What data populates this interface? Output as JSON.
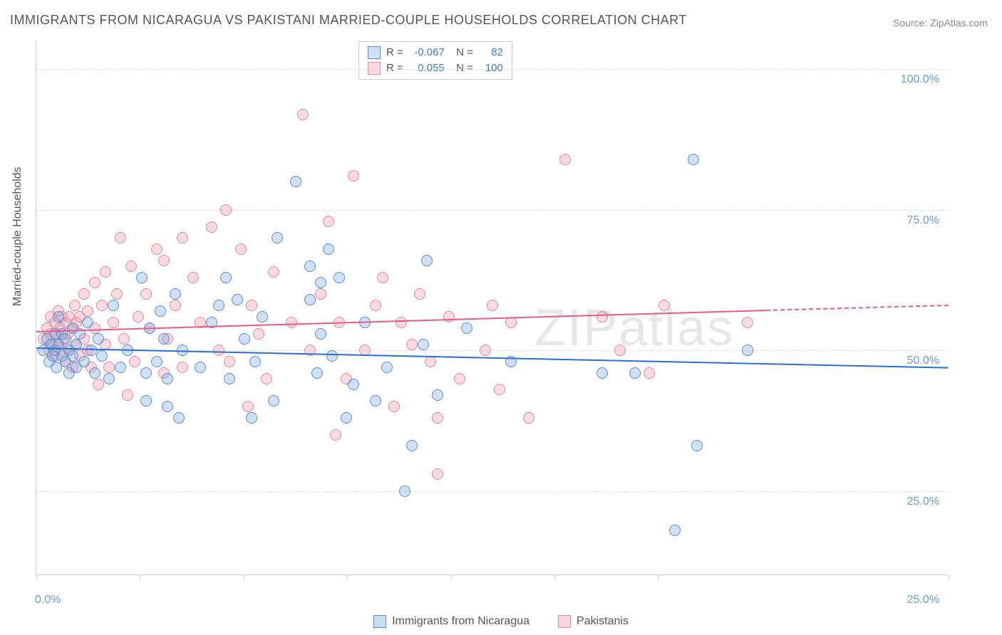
{
  "title": "IMMIGRANTS FROM NICARAGUA VS PAKISTANI MARRIED-COUPLE HOUSEHOLDS CORRELATION CHART",
  "source": "Source: ZipAtlas.com",
  "watermark": "ZIPatlas",
  "ylabel": "Married-couple Households",
  "chart": {
    "type": "scatter",
    "xlim": [
      0,
      25
    ],
    "ylim": [
      10,
      105
    ],
    "xtick_positions": [
      0,
      2.84,
      5.68,
      8.52,
      11.36,
      14.2,
      17.04,
      25
    ],
    "xtick_labels_shown": {
      "0": "0.0%",
      "25": "25.0%"
    },
    "ytick_positions": [
      25,
      50,
      75,
      100
    ],
    "ytick_labels": [
      "25.0%",
      "50.0%",
      "75.0%",
      "100.0%"
    ],
    "grid_color": "#dddddd",
    "axis_color": "#cccccc",
    "background_color": "#ffffff",
    "tick_label_color": "#6b9bd8",
    "axis_label_color": "#555555",
    "title_color": "#555555",
    "title_fontsize": 18,
    "label_fontsize": 16,
    "tick_fontsize": 16,
    "point_radius": 8,
    "series": [
      {
        "name": "Immigrants from Nicaragua",
        "fill_color": "rgba(120,170,225,0.35)",
        "stroke_color": "#5a8fce",
        "trend_color": "#2e6fd0",
        "R": "-0.067",
        "N": "82",
        "trend": {
          "x1": 0,
          "y1": 50.5,
          "x2": 25,
          "y2": 47.0
        },
        "points": [
          [
            0.2,
            50
          ],
          [
            0.3,
            52
          ],
          [
            0.35,
            48
          ],
          [
            0.4,
            51
          ],
          [
            0.45,
            49
          ],
          [
            0.5,
            53
          ],
          [
            0.5,
            50
          ],
          [
            0.55,
            47
          ],
          [
            0.6,
            51
          ],
          [
            0.6,
            56
          ],
          [
            0.7,
            49
          ],
          [
            0.7,
            53
          ],
          [
            0.8,
            48
          ],
          [
            0.8,
            52
          ],
          [
            0.9,
            50
          ],
          [
            0.9,
            46
          ],
          [
            1.0,
            54
          ],
          [
            1.0,
            49
          ],
          [
            1.1,
            51
          ],
          [
            1.1,
            47
          ],
          [
            1.2,
            53
          ],
          [
            1.3,
            48
          ],
          [
            1.4,
            55
          ],
          [
            1.5,
            50
          ],
          [
            1.6,
            46
          ],
          [
            1.7,
            52
          ],
          [
            1.8,
            49
          ],
          [
            2.0,
            45
          ],
          [
            2.1,
            58
          ],
          [
            2.3,
            47
          ],
          [
            2.5,
            50
          ],
          [
            2.9,
            63
          ],
          [
            3.0,
            46
          ],
          [
            3.0,
            41
          ],
          [
            3.1,
            54
          ],
          [
            3.3,
            48
          ],
          [
            3.4,
            57
          ],
          [
            3.5,
            52
          ],
          [
            3.6,
            45
          ],
          [
            3.6,
            40
          ],
          [
            3.8,
            60
          ],
          [
            3.9,
            38
          ],
          [
            4.0,
            50
          ],
          [
            4.5,
            47
          ],
          [
            4.8,
            55
          ],
          [
            5.0,
            58
          ],
          [
            5.2,
            63
          ],
          [
            5.3,
            45
          ],
          [
            5.5,
            59
          ],
          [
            5.7,
            52
          ],
          [
            5.9,
            38
          ],
          [
            6.0,
            48
          ],
          [
            6.2,
            56
          ],
          [
            6.5,
            41
          ],
          [
            6.6,
            70
          ],
          [
            7.1,
            80
          ],
          [
            7.5,
            65
          ],
          [
            7.5,
            59
          ],
          [
            7.7,
            46
          ],
          [
            7.8,
            53
          ],
          [
            7.8,
            62
          ],
          [
            8.0,
            68
          ],
          [
            8.1,
            49
          ],
          [
            8.3,
            63
          ],
          [
            8.5,
            38
          ],
          [
            8.7,
            44
          ],
          [
            9.0,
            55
          ],
          [
            9.3,
            41
          ],
          [
            9.6,
            47
          ],
          [
            10.1,
            25
          ],
          [
            10.3,
            33
          ],
          [
            10.6,
            51
          ],
          [
            10.7,
            66
          ],
          [
            11.0,
            42
          ],
          [
            11.8,
            54
          ],
          [
            13.0,
            48
          ],
          [
            15.5,
            46
          ],
          [
            16.4,
            46
          ],
          [
            17.5,
            18
          ],
          [
            18.0,
            84
          ],
          [
            18.1,
            33
          ],
          [
            19.5,
            50
          ]
        ]
      },
      {
        "name": "Pakistanis",
        "fill_color": "rgba(240,150,170,0.35)",
        "stroke_color": "#e08aa0",
        "trend_color": "#e75a8a",
        "R": "0.055",
        "N": "100",
        "trend": {
          "x1": 0,
          "y1": 53.5,
          "x2": 20,
          "y2": 57.3,
          "x2_dash": 25,
          "y2_dash": 58.2
        },
        "points": [
          [
            0.2,
            52
          ],
          [
            0.3,
            54
          ],
          [
            0.35,
            50
          ],
          [
            0.4,
            53
          ],
          [
            0.4,
            56
          ],
          [
            0.45,
            51
          ],
          [
            0.5,
            55
          ],
          [
            0.5,
            49
          ],
          [
            0.55,
            53
          ],
          [
            0.6,
            57
          ],
          [
            0.6,
            51
          ],
          [
            0.65,
            54
          ],
          [
            0.7,
            50
          ],
          [
            0.7,
            56
          ],
          [
            0.75,
            52
          ],
          [
            0.8,
            55
          ],
          [
            0.8,
            48
          ],
          [
            0.85,
            53
          ],
          [
            0.9,
            56
          ],
          [
            0.9,
            50
          ],
          [
            1.0,
            54
          ],
          [
            1.0,
            47
          ],
          [
            1.05,
            58
          ],
          [
            1.1,
            51
          ],
          [
            1.1,
            55
          ],
          [
            1.2,
            49
          ],
          [
            1.2,
            56
          ],
          [
            1.3,
            52
          ],
          [
            1.3,
            60
          ],
          [
            1.4,
            50
          ],
          [
            1.4,
            57
          ],
          [
            1.5,
            47
          ],
          [
            1.6,
            54
          ],
          [
            1.6,
            62
          ],
          [
            1.7,
            44
          ],
          [
            1.8,
            58
          ],
          [
            1.9,
            51
          ],
          [
            1.9,
            64
          ],
          [
            2.0,
            47
          ],
          [
            2.1,
            55
          ],
          [
            2.2,
            60
          ],
          [
            2.3,
            70
          ],
          [
            2.4,
            52
          ],
          [
            2.5,
            42
          ],
          [
            2.6,
            65
          ],
          [
            2.7,
            48
          ],
          [
            2.8,
            56
          ],
          [
            3.0,
            60
          ],
          [
            3.1,
            54
          ],
          [
            3.3,
            68
          ],
          [
            3.5,
            46
          ],
          [
            3.5,
            66
          ],
          [
            3.6,
            52
          ],
          [
            3.8,
            58
          ],
          [
            4.0,
            70
          ],
          [
            4.0,
            47
          ],
          [
            4.3,
            63
          ],
          [
            4.5,
            55
          ],
          [
            4.8,
            72
          ],
          [
            5.0,
            50
          ],
          [
            5.2,
            75
          ],
          [
            5.3,
            48
          ],
          [
            5.6,
            68
          ],
          [
            5.8,
            40
          ],
          [
            5.9,
            58
          ],
          [
            6.1,
            53
          ],
          [
            6.3,
            45
          ],
          [
            6.5,
            64
          ],
          [
            7.0,
            55
          ],
          [
            7.3,
            92
          ],
          [
            7.5,
            50
          ],
          [
            7.8,
            60
          ],
          [
            8.0,
            73
          ],
          [
            8.2,
            35
          ],
          [
            8.3,
            55
          ],
          [
            8.5,
            45
          ],
          [
            8.7,
            81
          ],
          [
            9.0,
            50
          ],
          [
            9.3,
            58
          ],
          [
            9.5,
            63
          ],
          [
            9.8,
            40
          ],
          [
            10.0,
            55
          ],
          [
            10.3,
            51
          ],
          [
            10.5,
            60
          ],
          [
            10.8,
            48
          ],
          [
            11.0,
            38
          ],
          [
            11.0,
            28
          ],
          [
            11.3,
            56
          ],
          [
            11.6,
            45
          ],
          [
            12.3,
            50
          ],
          [
            12.5,
            58
          ],
          [
            12.7,
            43
          ],
          [
            13.0,
            55
          ],
          [
            13.5,
            38
          ],
          [
            14.5,
            84
          ],
          [
            15.5,
            56
          ],
          [
            16.0,
            50
          ],
          [
            16.8,
            46
          ],
          [
            17.2,
            58
          ],
          [
            19.5,
            55
          ]
        ]
      }
    ]
  },
  "bottom_legend": [
    {
      "label": "Immigrants from Nicaragua",
      "fill": "rgba(120,170,225,0.4)",
      "stroke": "#5a8fce"
    },
    {
      "label": "Pakistanis",
      "fill": "rgba(240,150,170,0.4)",
      "stroke": "#e08aa0"
    }
  ]
}
